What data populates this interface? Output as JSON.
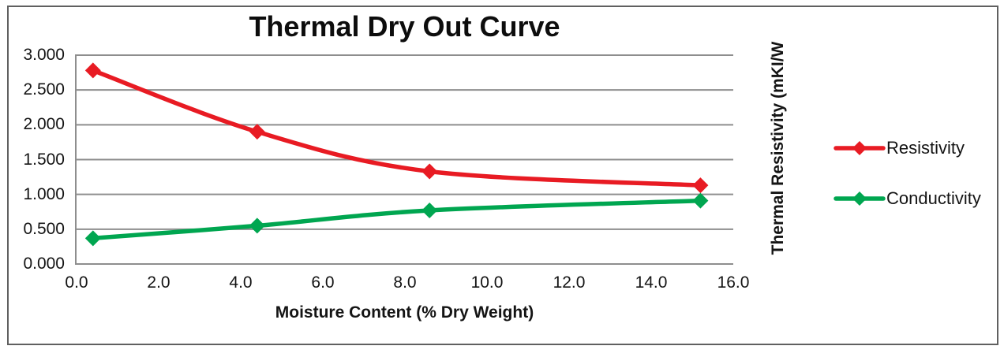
{
  "chart_data": {
    "type": "line",
    "smooth": true,
    "title": "Thermal Dry Out Curve",
    "xlabel": "Moisture Content (% Dry Weight)",
    "ylabel_right": "Thermal Resistivity (mKI/W",
    "xlim": [
      0,
      16
    ],
    "ylim": [
      0,
      3
    ],
    "grid": true,
    "legend_position": "right",
    "x_tick_values": [
      0,
      2,
      4,
      6,
      8,
      10,
      12,
      14,
      16
    ],
    "x_tick_labels": [
      "0.0",
      "2.0",
      "4.0",
      "6.0",
      "8.0",
      "10.0",
      "12.0",
      "14.0",
      "16.0"
    ],
    "y_tick_values": [
      0,
      0.5,
      1,
      1.5,
      2,
      2.5,
      3
    ],
    "y_tick_labels": [
      "0.000",
      "0.500",
      "1.000",
      "1.500",
      "2.000",
      "2.500",
      "3.000"
    ],
    "series": [
      {
        "name": "Resistivity",
        "color": "#e81b23",
        "marker": "diamond",
        "x": [
          0.4,
          4.4,
          8.6,
          15.2
        ],
        "y": [
          2.78,
          1.9,
          1.33,
          1.13
        ]
      },
      {
        "name": "Conductivity",
        "color": "#00a650",
        "marker": "diamond",
        "x": [
          0.4,
          4.4,
          8.6,
          15.2
        ],
        "y": [
          0.37,
          0.55,
          0.77,
          0.91
        ]
      }
    ]
  },
  "colors": {
    "gridline": "#8e8e8e",
    "axis_line": "#8e8e8e",
    "frame_border": "#606060",
    "text": "#141414"
  }
}
